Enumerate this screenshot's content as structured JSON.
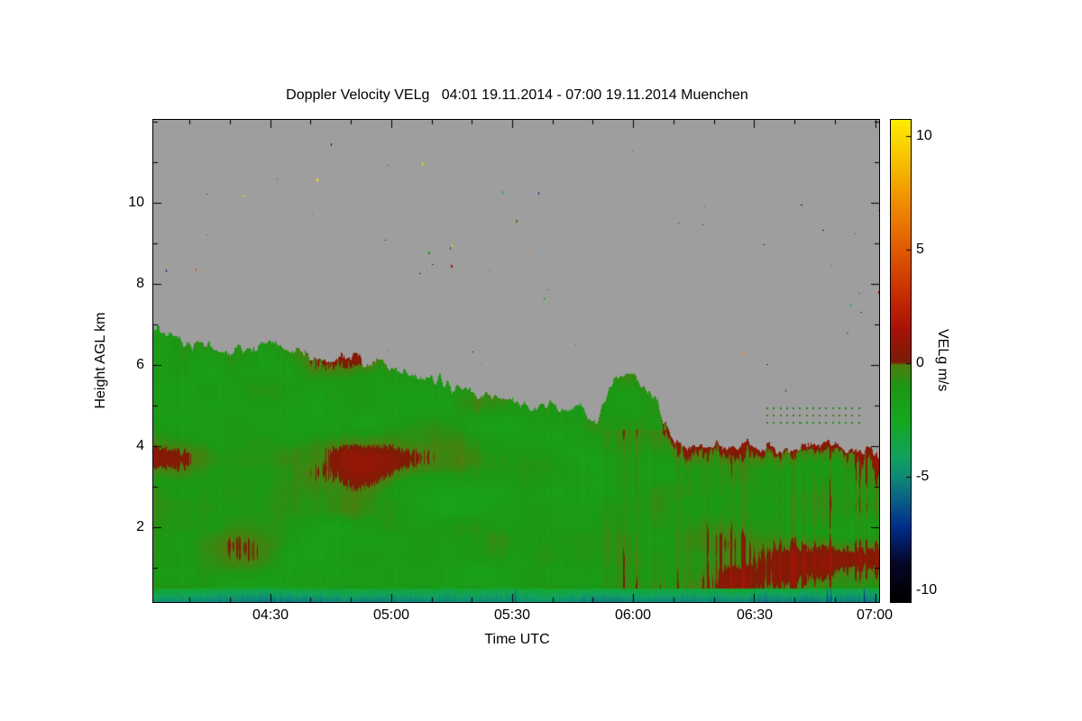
{
  "chart_data": {
    "type": "heatmap",
    "title": "Doppler Velocity VELg   04:01 19.11.2014 - 07:00 19.11.2014 Muenchen",
    "xlabel": "Time UTC",
    "ylabel": "Height AGL km",
    "colorbar_label": "VELg m/s",
    "station": "Muenchen",
    "time_start": "04:01 19.11.2014",
    "time_end": "07:00 19.11.2014",
    "x_tick_labels": [
      "04:30",
      "05:00",
      "05:30",
      "06:00",
      "06:30",
      "07:00"
    ],
    "x_tick_minutes": [
      270,
      300,
      330,
      360,
      390,
      420
    ],
    "x_range_minutes": [
      241,
      421
    ],
    "x_minor_step_minutes": 10,
    "y_tick_labels": [
      "2",
      "4",
      "6",
      "8",
      "10"
    ],
    "y_ticks_km": [
      2,
      4,
      6,
      8,
      10
    ],
    "y_range_km": [
      0.15,
      12.05
    ],
    "y_minor_step_km": 1,
    "colorbar_tick_labels": [
      "10",
      "5",
      "0",
      "-5",
      "-10"
    ],
    "colorbar_tick_values": [
      10,
      5,
      0,
      -5,
      -10
    ],
    "value_range": [
      -10.5,
      10.7
    ],
    "units": "m/s",
    "no_data_color": "#9e9e9e",
    "colormap_stops": [
      {
        "v": -10.5,
        "c": "#000000"
      },
      {
        "v": -8.8,
        "c": "#060628"
      },
      {
        "v": -7.2,
        "c": "#002d8a"
      },
      {
        "v": -6.0,
        "c": "#0a5f86"
      },
      {
        "v": -5.0,
        "c": "#0e8a78"
      },
      {
        "v": -4.0,
        "c": "#12a35a"
      },
      {
        "v": -2.5,
        "c": "#15a81f"
      },
      {
        "v": -1.0,
        "c": "#1d9715"
      },
      {
        "v": -0.05,
        "c": "#4f7d10"
      },
      {
        "v": 0.05,
        "c": "#7a1d06"
      },
      {
        "v": 1.5,
        "c": "#a81208"
      },
      {
        "v": 3.0,
        "c": "#c62d00"
      },
      {
        "v": 5.0,
        "c": "#e05a00"
      },
      {
        "v": 7.0,
        "c": "#f08c00"
      },
      {
        "v": 9.0,
        "c": "#f7c300"
      },
      {
        "v": 10.7,
        "c": "#ffee00"
      }
    ],
    "field": {
      "seed": 7,
      "description": "Cloud radar Doppler velocity field: mostly slightly negative (green, ~-2 to 0 m/s) below a descending cloud top; gray above cloud top = no data with sparse colored speckle noise; teal/blue strongly negative band (~-4 to -7 m/s) near the surface; reddish updraft streaks (0 to +2 m/s) below 4.3 km after ~06:05.",
      "cloud_top_profile": [
        [
          0.0,
          6.95
        ],
        [
          0.02,
          6.8
        ],
        [
          0.045,
          6.55
        ],
        [
          0.075,
          6.45
        ],
        [
          0.105,
          6.35
        ],
        [
          0.13,
          6.45
        ],
        [
          0.158,
          6.6
        ],
        [
          0.18,
          6.45
        ],
        [
          0.205,
          6.3
        ],
        [
          0.235,
          6.1
        ],
        [
          0.265,
          6.15
        ],
        [
          0.285,
          6.2
        ],
        [
          0.3,
          5.9
        ],
        [
          0.315,
          6.1
        ],
        [
          0.34,
          5.8
        ],
        [
          0.37,
          5.7
        ],
        [
          0.4,
          5.6
        ],
        [
          0.425,
          5.4
        ],
        [
          0.455,
          5.3
        ],
        [
          0.48,
          5.2
        ],
        [
          0.505,
          5.1
        ],
        [
          0.52,
          4.95
        ],
        [
          0.545,
          5.1
        ],
        [
          0.565,
          4.8
        ],
        [
          0.585,
          5.0
        ],
        [
          0.6,
          4.65
        ],
        [
          0.615,
          4.8
        ],
        [
          0.628,
          5.55
        ],
        [
          0.648,
          5.8
        ],
        [
          0.663,
          5.65
        ],
        [
          0.678,
          5.4
        ],
        [
          0.692,
          5.3
        ],
        [
          0.702,
          4.7
        ],
        [
          0.715,
          4.2
        ],
        [
          0.73,
          4.05
        ],
        [
          0.77,
          3.95
        ],
        [
          0.82,
          4.05
        ],
        [
          0.87,
          3.95
        ],
        [
          0.92,
          4.05
        ],
        [
          0.96,
          3.95
        ],
        [
          1.0,
          3.9
        ]
      ],
      "edge_jitter_km": 0.18,
      "base_velocity": -1.25,
      "base_noise_amp": 0.85,
      "patch_threshold": 0.62,
      "patch_gain": 5,
      "streak_region_start": 0.62,
      "streak_region_top_km": 4.4,
      "streak_gain": 1.9,
      "surface_band_top_km": 0.5,
      "surface_band_velocity": -3.0,
      "surface_band_gradient": 6.5,
      "speckle_count": 110,
      "artifact_rows_km": [
        4.6,
        4.78,
        4.95
      ],
      "artifact_row_span": [
        0.845,
        0.98
      ]
    }
  }
}
